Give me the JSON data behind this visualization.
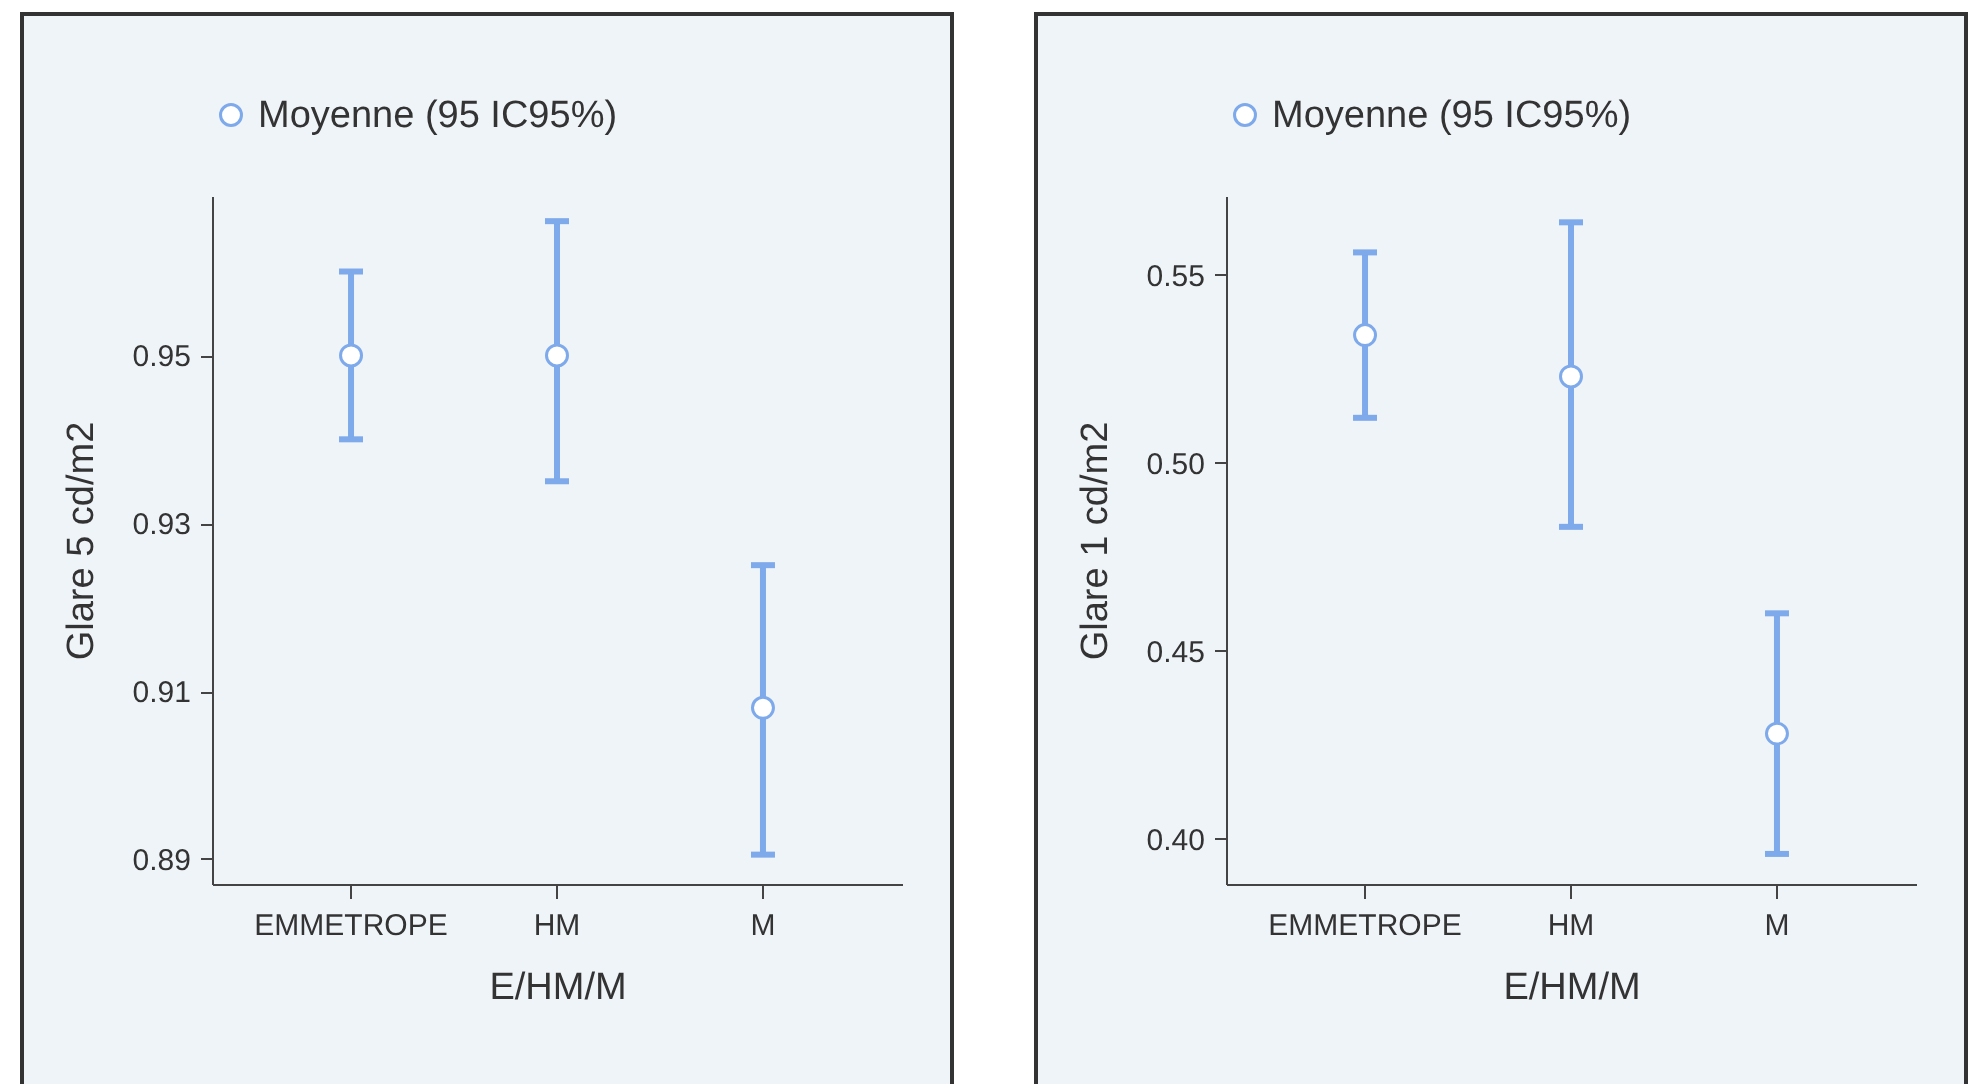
{
  "chart_data": [
    {
      "type": "scatter",
      "xlabel": "E/HM/M",
      "ylabel": "Glare 5 cd/m2",
      "categories": [
        "EMMETROPE",
        "HM",
        "M"
      ],
      "ylim": [
        0.887,
        0.969
      ],
      "yticks": [
        0.89,
        0.91,
        0.93,
        0.95
      ],
      "legend": "top",
      "marker": "circle",
      "grid": false,
      "series": [
        {
          "name": "Moyenne (95 IC95%)",
          "color": "#7ea9ea",
          "values": [
            0.95,
            0.95,
            0.908
          ],
          "errors": [
            [
              0.94,
              0.96
            ],
            [
              0.935,
              0.966
            ],
            [
              0.8905,
              0.925
            ]
          ]
        }
      ]
    },
    {
      "type": "scatter",
      "xlabel": "E/HM/M",
      "ylabel": "Glare 1 cd/m2",
      "categories": [
        "EMMETROPE",
        "HM",
        "M"
      ],
      "ylim": [
        0.388,
        0.571
      ],
      "yticks": [
        {
          "value": 0.4,
          "label": "0.40"
        },
        0.45,
        {
          "value": 0.5,
          "label": "0.50"
        },
        0.55
      ],
      "legend": "top",
      "marker": "circle",
      "grid": false,
      "series": [
        {
          "name": "Moyenne (95 IC95%)",
          "color": "#7ea9ea",
          "values": [
            0.534,
            0.523,
            0.428
          ],
          "errors": [
            [
              0.512,
              0.556
            ],
            [
              0.483,
              0.564
            ],
            [
              0.396,
              0.46
            ]
          ]
        }
      ]
    }
  ]
}
